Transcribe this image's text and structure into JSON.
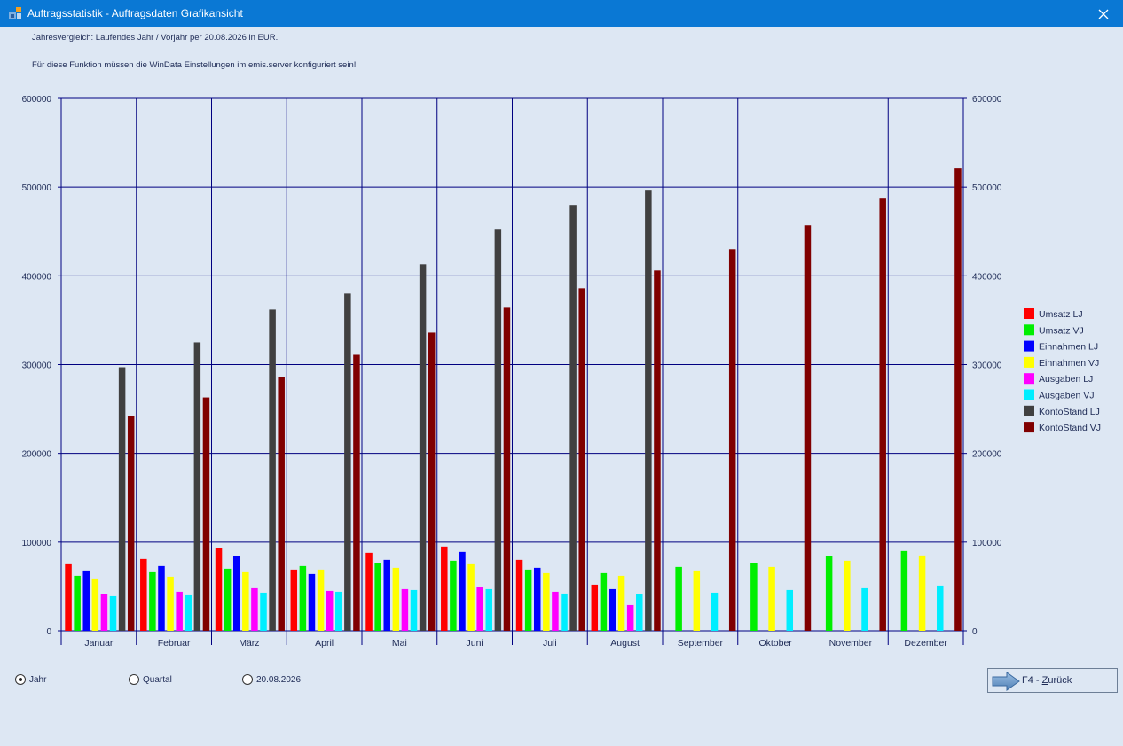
{
  "window": {
    "title": "Auftragsstatistik - Auftragsdaten Grafikansicht",
    "close_icon": "close-icon"
  },
  "info": {
    "line1": "Jahresvergleich: Laufendes Jahr / Vorjahr per 20.08.2026 in EUR.",
    "line2": "Für diese Funktion müssen die WinData Einstellungen im emis.server konfiguriert sein!"
  },
  "chart_data": {
    "type": "bar",
    "categories": [
      "Januar",
      "Februar",
      "März",
      "April",
      "Mai",
      "Juni",
      "Juli",
      "August",
      "September",
      "Oktober",
      "November",
      "Dezember"
    ],
    "ylim": [
      0,
      600000
    ],
    "yticks": [
      "0",
      "100000",
      "200000",
      "300000",
      "400000",
      "500000",
      "600000"
    ],
    "grid": true,
    "legend_position": "right",
    "series": [
      {
        "name": "Umsatz LJ",
        "color": "#ff0000",
        "values": [
          75000,
          81000,
          93000,
          69000,
          88000,
          95000,
          80000,
          52000,
          null,
          null,
          null,
          null
        ]
      },
      {
        "name": "Umsatz VJ",
        "color": "#00ee00",
        "values": [
          62000,
          66000,
          70000,
          73000,
          76000,
          79000,
          69000,
          65000,
          72000,
          76000,
          84000,
          90000
        ]
      },
      {
        "name": "Einnahmen LJ",
        "color": "#0000ff",
        "values": [
          68000,
          73000,
          84000,
          64000,
          80000,
          89000,
          71000,
          47000,
          null,
          null,
          null,
          null
        ]
      },
      {
        "name": "Einnahmen VJ",
        "color": "#ffff00",
        "values": [
          59000,
          61000,
          66000,
          69000,
          71000,
          75000,
          65000,
          62000,
          68000,
          72000,
          79000,
          85000
        ]
      },
      {
        "name": "Ausgaben LJ",
        "color": "#ff00ff",
        "values": [
          41000,
          44000,
          48000,
          45000,
          47000,
          49000,
          44000,
          29000,
          null,
          null,
          null,
          null
        ]
      },
      {
        "name": "Ausgaben VJ",
        "color": "#00eeff",
        "values": [
          39000,
          40000,
          43000,
          44000,
          46000,
          47000,
          42000,
          41000,
          43000,
          46000,
          48000,
          51000
        ]
      },
      {
        "name": "KontoStand LJ",
        "color": "#404040",
        "values": [
          297000,
          325000,
          362000,
          380000,
          413000,
          452000,
          480000,
          496000,
          null,
          null,
          null,
          null
        ]
      },
      {
        "name": "KontoStand VJ",
        "color": "#800000",
        "values": [
          242000,
          263000,
          286000,
          311000,
          336000,
          364000,
          386000,
          406000,
          430000,
          457000,
          487000,
          521000
        ]
      }
    ]
  },
  "options": {
    "jahr": "Jahr",
    "quartal": "Quartal",
    "datum": "20.08.2026",
    "selected": "jahr"
  },
  "back_button": {
    "key": "F4 - ",
    "mnemonic": "Z",
    "rest": "urück",
    "icon": "arrow-right-icon"
  }
}
